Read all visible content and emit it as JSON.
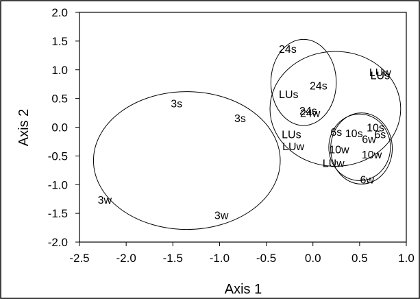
{
  "chart_data": {
    "type": "scatter",
    "title": "",
    "xlabel": "Axis 1",
    "ylabel": "Axis 2",
    "xlim": [
      -2.5,
      1.0
    ],
    "ylim": [
      -2.0,
      2.0
    ],
    "grid": false,
    "xticks": [
      -2.5,
      -2.0,
      -1.5,
      -1.0,
      -0.5,
      0.0,
      0.5,
      1.0
    ],
    "xtick_labels": [
      "-2.5",
      "-2.0",
      "-1.5",
      "-1.0",
      "-0.5",
      "0.0",
      "0.5",
      "1.0"
    ],
    "yticks": [
      -2.0,
      -1.5,
      -1.0,
      -0.5,
      0.0,
      0.5,
      1.0,
      1.5,
      2.0
    ],
    "ytick_labels": [
      "-2.0",
      "-1.5",
      "-1.0",
      "-0.5",
      "0.0",
      "0.5",
      "1.0",
      "1.5",
      "2.0"
    ],
    "points": [
      {
        "label": "24s",
        "x": -0.27,
        "y": 1.37
      },
      {
        "label": "24s",
        "x": 0.06,
        "y": 0.73
      },
      {
        "label": "LUs",
        "x": -0.26,
        "y": 0.58
      },
      {
        "label": "24s",
        "x": -0.05,
        "y": 0.29
      },
      {
        "label": "24w",
        "x": -0.03,
        "y": 0.25
      },
      {
        "label": "LUs",
        "x": -0.23,
        "y": -0.12
      },
      {
        "label": "LUw",
        "x": -0.21,
        "y": -0.33
      },
      {
        "label": "6s",
        "x": 0.25,
        "y": -0.08
      },
      {
        "label": "10s",
        "x": 0.44,
        "y": -0.1
      },
      {
        "label": "10s",
        "x": 0.67,
        "y": 0.0
      },
      {
        "label": "6w",
        "x": 0.6,
        "y": -0.2
      },
      {
        "label": "6s",
        "x": 0.72,
        "y": -0.12
      },
      {
        "label": "10w",
        "x": 0.28,
        "y": -0.38
      },
      {
        "label": "10w",
        "x": 0.63,
        "y": -0.47
      },
      {
        "label": "LUw",
        "x": 0.22,
        "y": -0.62
      },
      {
        "label": "6w",
        "x": 0.58,
        "y": -0.91
      },
      {
        "label": "LUs",
        "x": 0.72,
        "y": 0.91
      },
      {
        "label": "LUw",
        "x": 0.72,
        "y": 0.96
      },
      {
        "label": "3s",
        "x": -1.46,
        "y": 0.42
      },
      {
        "label": "3s",
        "x": -0.78,
        "y": 0.16
      },
      {
        "label": "3w",
        "x": -2.23,
        "y": -1.26
      },
      {
        "label": "3w",
        "x": -0.98,
        "y": -1.53
      }
    ],
    "ellipses": [
      {
        "cx": -1.35,
        "cy": -0.58,
        "rx": 1.0,
        "ry": 1.2
      },
      {
        "cx": -0.1,
        "cy": 0.78,
        "rx": 0.35,
        "ry": 0.75
      },
      {
        "cx": 0.24,
        "cy": 0.32,
        "rx": 0.7,
        "ry": 1.0
      },
      {
        "cx": 0.5,
        "cy": -0.35,
        "rx": 0.33,
        "ry": 0.58
      },
      {
        "cx": 0.52,
        "cy": -0.37,
        "rx": 0.33,
        "ry": 0.62
      }
    ]
  }
}
